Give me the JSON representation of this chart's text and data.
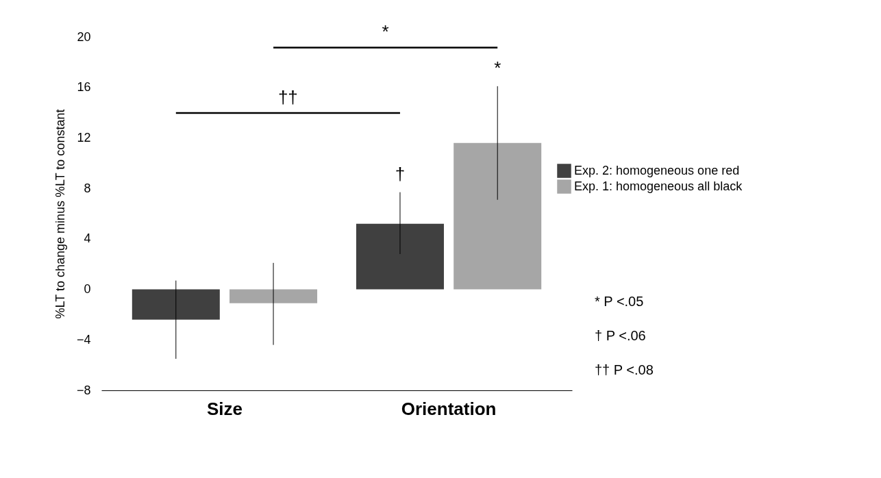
{
  "chart_data": {
    "type": "bar",
    "ylabel": "%LT to change minus %LT to constant",
    "categories": [
      "Size",
      "Orientation"
    ],
    "series": [
      {
        "name": "Exp. 2: homogeneous one red",
        "color": "#404040",
        "values": [
          -2.4,
          5.2
        ],
        "errors": [
          [
            -5.5,
            0.7
          ],
          [
            2.8,
            7.7
          ]
        ]
      },
      {
        "name": "Exp. 1: homogeneous all black",
        "color": "#a6a6a6",
        "values": [
          -1.1,
          11.6
        ],
        "errors": [
          [
            -4.4,
            2.1
          ],
          [
            7.1,
            16.1
          ]
        ]
      }
    ],
    "ylim": [
      -8,
      20
    ],
    "yticks": [
      -8,
      -4,
      0,
      4,
      8,
      12,
      16,
      20
    ],
    "grid": false,
    "legend": "right",
    "annotations": [
      "*",
      "††",
      "*",
      "†",
      "* P <.05",
      "† P <.06",
      "†† P <.08"
    ]
  }
}
